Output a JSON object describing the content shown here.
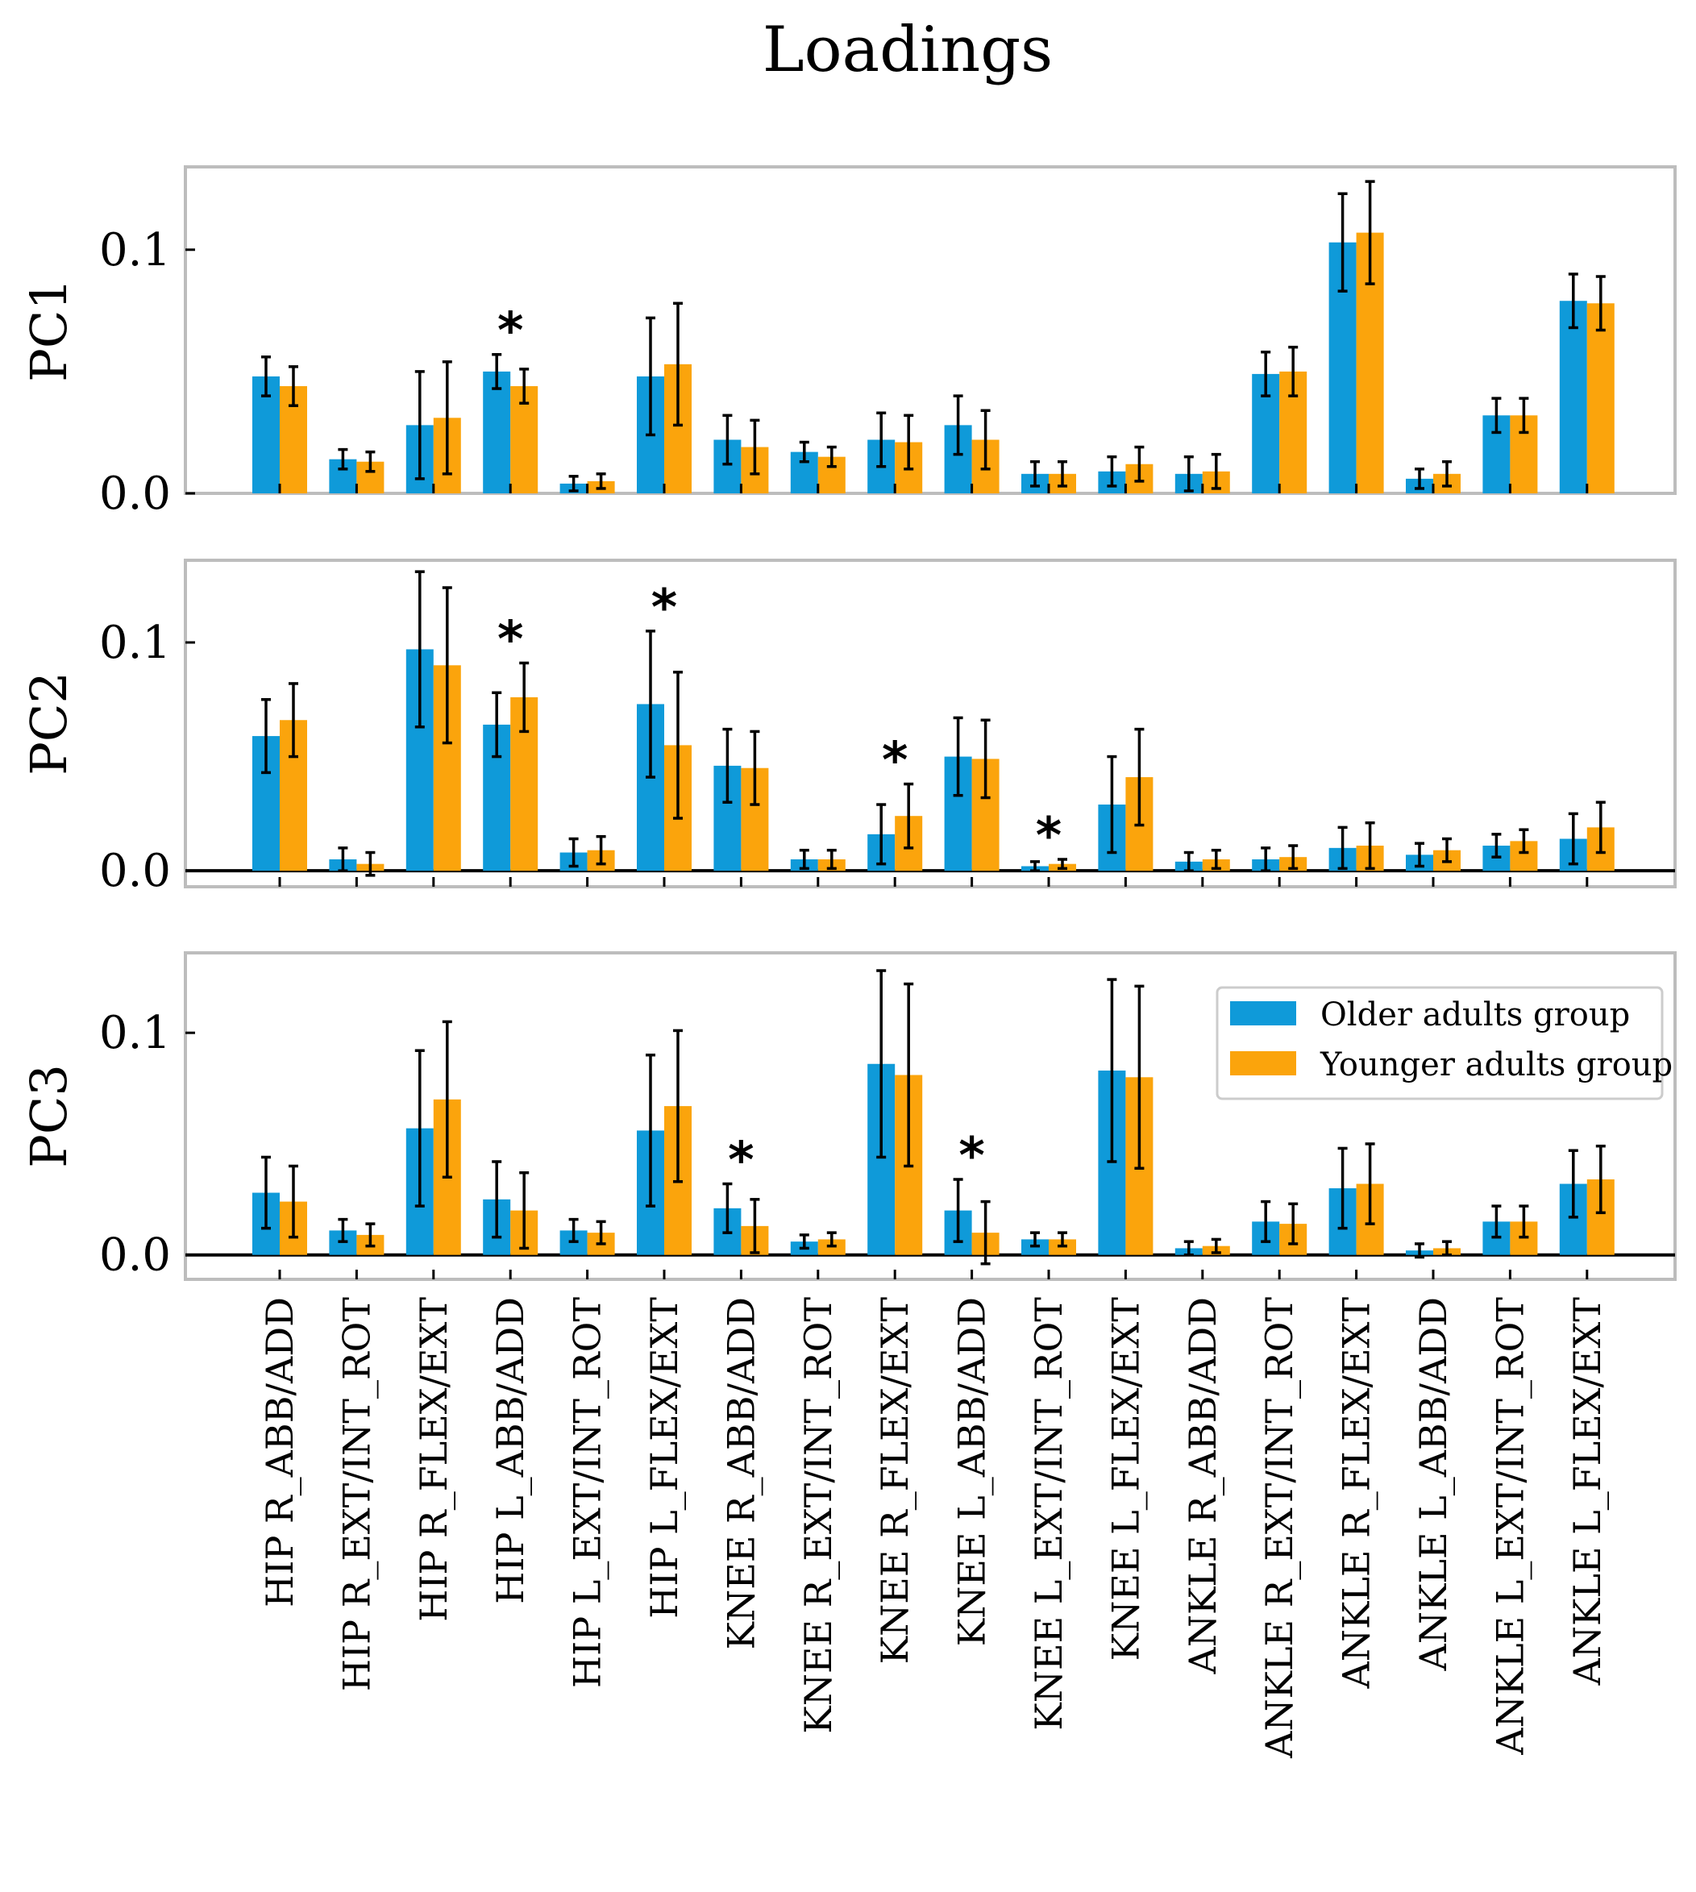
{
  "chart_data": {
    "type": "bar",
    "title": "Loadings",
    "categories": [
      "HIP R_ABB/ADD",
      "HIP R_EXT/INT_ROT",
      "HIP R_FLEX/EXT",
      "HIP L_ABB/ADD",
      "HIP L_EXT/INT_ROT",
      "HIP L_FLEX/EXT",
      "KNEE R_ABB/ADD",
      "KNEE R_EXT/INT_ROT",
      "KNEE R_FLEX/EXT",
      "KNEE L_ABB/ADD",
      "KNEE L_EXT/INT_ROT",
      "KNEE L_FLEX/EXT",
      "ANKLE R_ABB/ADD",
      "ANKLE R_EXT/INT_ROT",
      "ANKLE R_FLEX/EXT",
      "ANKLE L_ABB/ADD",
      "ANKLE L_EXT/INT_ROT",
      "ANKLE L_FLEX/EXT"
    ],
    "legend": {
      "position": "upper-right of PC3",
      "entries": [
        "Older adults group",
        "Younger adults group"
      ]
    },
    "colors": {
      "older": "#0f9ad9",
      "younger": "#fba40c"
    },
    "panels": [
      {
        "ylabel": "PC1",
        "ylim": [
          0,
          0.134
        ],
        "yticks": [
          0.0,
          0.1
        ],
        "ytick_labels": [
          "0.0",
          "0.1"
        ],
        "zero_line": false,
        "series": [
          {
            "name": "Older adults group",
            "values": [
              0.048,
              0.014,
              0.028,
              0.05,
              0.004,
              0.048,
              0.022,
              0.017,
              0.022,
              0.028,
              0.008,
              0.009,
              0.008,
              0.049,
              0.103,
              0.006,
              0.032,
              0.079
            ],
            "errors": [
              0.008,
              0.004,
              0.022,
              0.007,
              0.003,
              0.024,
              0.01,
              0.004,
              0.011,
              0.012,
              0.005,
              0.006,
              0.007,
              0.009,
              0.02,
              0.004,
              0.007,
              0.011
            ]
          },
          {
            "name": "Younger adults group",
            "values": [
              0.044,
              0.013,
              0.031,
              0.044,
              0.005,
              0.053,
              0.019,
              0.015,
              0.021,
              0.022,
              0.008,
              0.012,
              0.009,
              0.05,
              0.107,
              0.008,
              0.032,
              0.078
            ],
            "errors": [
              0.008,
              0.004,
              0.023,
              0.007,
              0.003,
              0.025,
              0.011,
              0.004,
              0.011,
              0.012,
              0.005,
              0.007,
              0.007,
              0.01,
              0.021,
              0.005,
              0.007,
              0.011
            ]
          }
        ],
        "significant": [
          3
        ]
      },
      {
        "ylabel": "PC2",
        "ylim": [
          -0.007,
          0.136
        ],
        "yticks": [
          0.0,
          0.1
        ],
        "ytick_labels": [
          "0.0",
          "0.1"
        ],
        "zero_line": true,
        "series": [
          {
            "name": "Older adults group",
            "values": [
              0.059,
              0.005,
              0.097,
              0.064,
              0.008,
              0.073,
              0.046,
              0.005,
              0.016,
              0.05,
              0.002,
              0.029,
              0.004,
              0.005,
              0.01,
              0.007,
              0.011,
              0.014
            ],
            "errors": [
              0.016,
              0.005,
              0.034,
              0.014,
              0.006,
              0.032,
              0.016,
              0.004,
              0.013,
              0.017,
              0.002,
              0.021,
              0.004,
              0.005,
              0.009,
              0.005,
              0.005,
              0.011
            ]
          },
          {
            "name": "Younger adults group",
            "values": [
              0.066,
              0.003,
              0.09,
              0.076,
              0.009,
              0.055,
              0.045,
              0.005,
              0.024,
              0.049,
              0.003,
              0.041,
              0.005,
              0.006,
              0.011,
              0.009,
              0.013,
              0.019
            ],
            "errors": [
              0.016,
              0.005,
              0.034,
              0.015,
              0.006,
              0.032,
              0.016,
              0.004,
              0.014,
              0.017,
              0.002,
              0.021,
              0.004,
              0.005,
              0.01,
              0.005,
              0.005,
              0.011
            ]
          }
        ],
        "significant": [
          3,
          5,
          8,
          10
        ]
      },
      {
        "ylabel": "PC3",
        "ylim": [
          -0.011,
          0.136
        ],
        "yticks": [
          0.0,
          0.1
        ],
        "ytick_labels": [
          "0.0",
          "0.1"
        ],
        "zero_line": true,
        "series": [
          {
            "name": "Older adults group",
            "values": [
              0.028,
              0.011,
              0.057,
              0.025,
              0.011,
              0.056,
              0.021,
              0.006,
              0.086,
              0.02,
              0.007,
              0.083,
              0.003,
              0.015,
              0.03,
              0.002,
              0.015,
              0.032
            ],
            "errors": [
              0.016,
              0.005,
              0.035,
              0.017,
              0.005,
              0.034,
              0.011,
              0.003,
              0.042,
              0.014,
              0.003,
              0.041,
              0.003,
              0.009,
              0.018,
              0.003,
              0.007,
              0.015
            ]
          },
          {
            "name": "Younger adults group",
            "values": [
              0.024,
              0.009,
              0.07,
              0.02,
              0.01,
              0.067,
              0.013,
              0.007,
              0.081,
              0.01,
              0.007,
              0.08,
              0.004,
              0.014,
              0.032,
              0.003,
              0.015,
              0.034
            ],
            "errors": [
              0.016,
              0.005,
              0.035,
              0.017,
              0.005,
              0.034,
              0.012,
              0.003,
              0.041,
              0.014,
              0.003,
              0.041,
              0.003,
              0.009,
              0.018,
              0.003,
              0.007,
              0.015
            ]
          }
        ],
        "significant": [
          6,
          9
        ]
      }
    ]
  }
}
